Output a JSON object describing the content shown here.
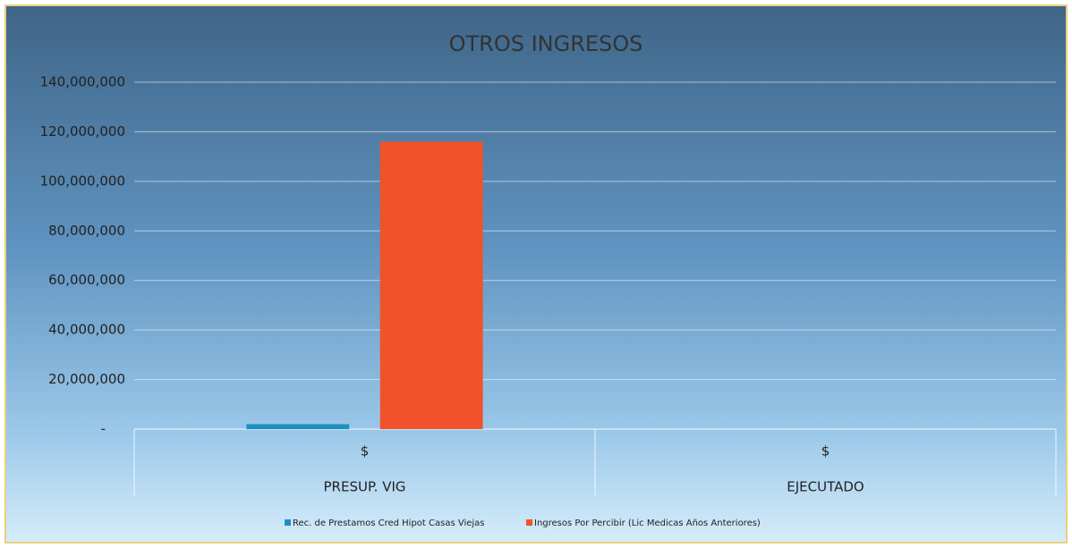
{
  "chart_data": {
    "type": "bar",
    "title": "OTROS INGRESOS",
    "categories": [
      "PRESUP. VIG",
      "EJECUTADO"
    ],
    "sub_categories": [
      "$",
      "$"
    ],
    "series": [
      {
        "name": "Rec. de Prestamos Cred Hipot Casas Viejas",
        "color": "#1f8fc0",
        "values": [
          2000000,
          0
        ]
      },
      {
        "name": "Ingresos Por Percibir (Lic Medicas Años Anteriores)",
        "color": "#f0522a",
        "values": [
          116000000,
          0
        ]
      }
    ],
    "ylim": [
      0,
      140000000
    ],
    "yticks": [
      {
        "value": 0,
        "label": "-"
      },
      {
        "value": 20000000,
        "label": "20,000,000"
      },
      {
        "value": 40000000,
        "label": "40,000,000"
      },
      {
        "value": 60000000,
        "label": "60,000,000"
      },
      {
        "value": 80000000,
        "label": "80,000,000"
      },
      {
        "value": 100000000,
        "label": "100,000,000"
      },
      {
        "value": 120000000,
        "label": "120,000,000"
      },
      {
        "value": 140000000,
        "label": "140,000,000"
      }
    ],
    "grid": true,
    "legend": "bottom"
  }
}
